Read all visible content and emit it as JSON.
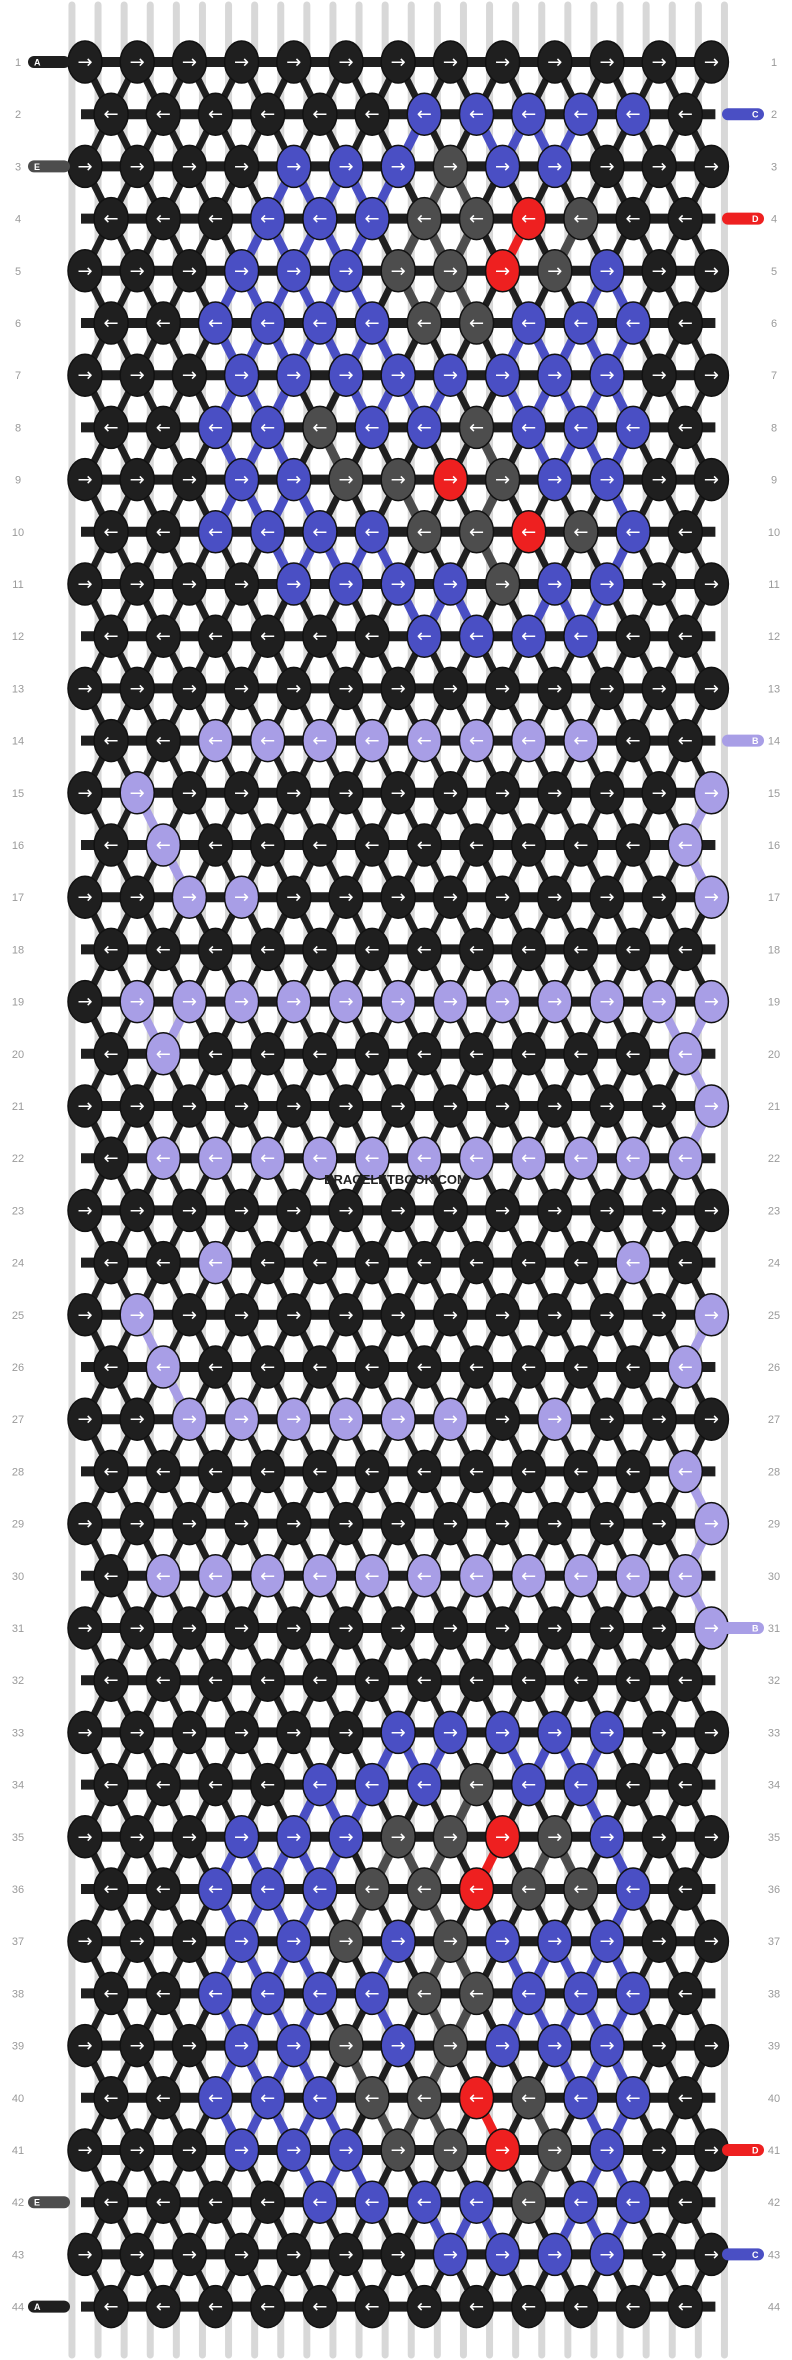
{
  "watermark": "BRACELETBOOK.COM",
  "pattern": {
    "rows": 44,
    "knots_per_row": [
      13,
      12
    ],
    "strands": 26,
    "colors": {
      "A": "#1f1f1f",
      "B": "#a89ee6",
      "C": "#4a4fc4",
      "D": "#ee2020",
      "E": "#4d4d4d"
    },
    "left_strand_labels": [
      {
        "row": 1,
        "label": "A",
        "color": "A"
      },
      {
        "row": 3,
        "label": "E",
        "color": "E"
      },
      {
        "row": 42,
        "label": "E",
        "color": "E"
      },
      {
        "row": 44,
        "label": "A",
        "color": "A"
      }
    ],
    "right_strand_labels": [
      {
        "row": 2,
        "label": "C",
        "color": "C"
      },
      {
        "row": 4,
        "label": "D",
        "color": "D"
      },
      {
        "row": 14,
        "label": "B",
        "color": "B"
      },
      {
        "row": 31,
        "label": "B",
        "color": "B"
      },
      {
        "row": 41,
        "label": "D",
        "color": "D"
      },
      {
        "row": 43,
        "label": "C",
        "color": "C"
      }
    ],
    "knot_rows": [
      "AAAAAAAAAAAAA",
      "AAAAAACCCCCA",
      "AAAACCCECCAAA",
      "AAACCCEEDEAA",
      "AAACCCEEDECAA",
      "AACCCCEECCCA",
      "AAACCCCCCCCAA",
      "AACCECCECCCA",
      "AAACCEEDECCAA",
      "AACCCCEEDECA",
      "AAAACCCCECCAA",
      "AAAAAACCCCAA",
      "AAAAAAAAAAAAA",
      "AABBBBBBBBAA",
      "ABAAAAAAAAAAB",
      "ABAAAAAAAAAB",
      "AABBAAAAAAAAB",
      "AAAAAAAAAAAA",
      "ABBBBBBBBBBBB",
      "ABAAAAAAAAAB",
      "AAAAAAAAAAAAB",
      "ABBBBBBBBBBB",
      "AAAAAAAAAAAAA",
      "AABAAAAAAABA",
      "ABAAAAAAAAAAB",
      "ABAAAAAAAAAB",
      "AABBBBBBABAAA",
      "AAAAAAAAAAAB",
      "AAAAAAAAAAAAB",
      "ABBBBBBBBBBB",
      "AAAAAAAAAAAAB",
      "AAAAAAAAAAAA",
      "AAAAAACCCCCAA",
      "AAAACCCECCAA",
      "AAACCCEEDECAA",
      "AACCCEEDEECA",
      "AAACCECECCCAA",
      "AACCCCEECCCA",
      "AAACCECECCCAA",
      "AACCCEEDECCA",
      "AAACCCEEDECAA",
      "AAAACCCCECCA",
      "AAAAAAACCCCAA",
      "AAAAAAAAAAAA"
    ]
  }
}
